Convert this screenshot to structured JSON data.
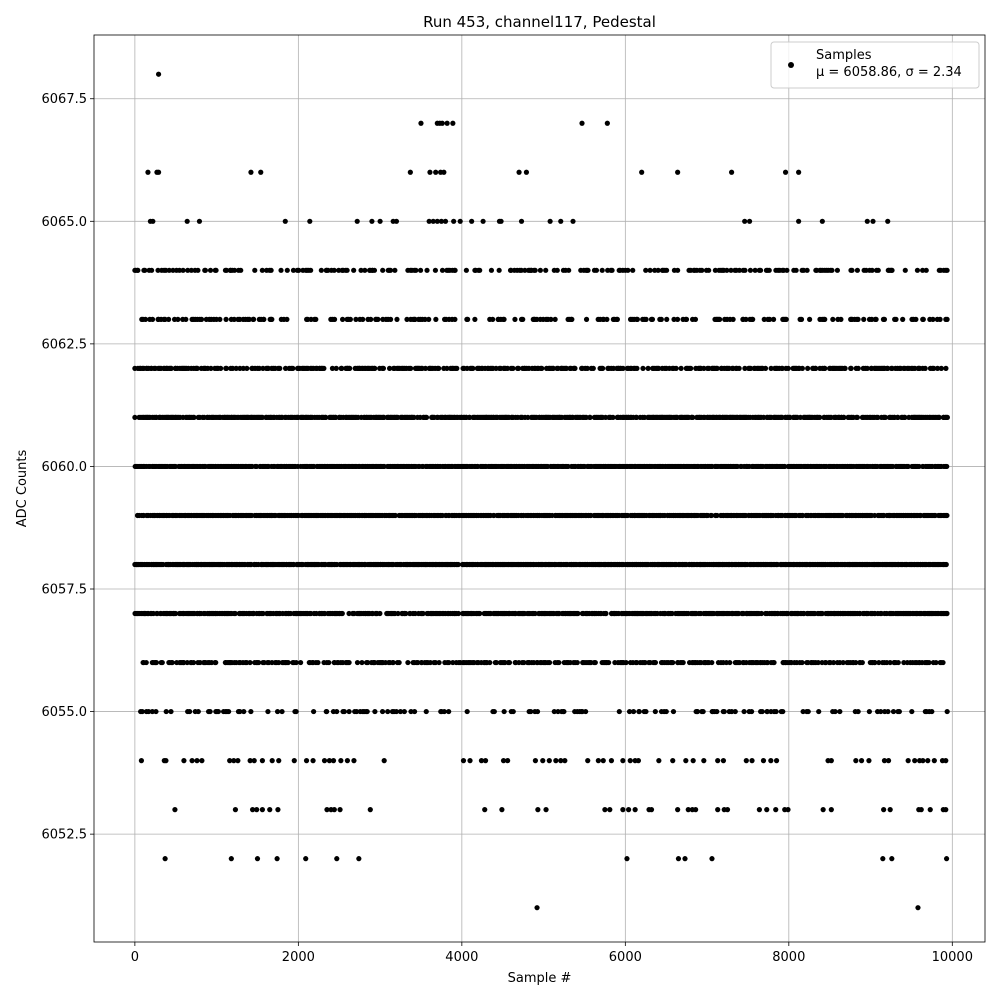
{
  "chart_data": {
    "type": "scatter",
    "title": "Run 453, channel117, Pedestal",
    "xlabel": "Sample #",
    "ylabel": "ADC Counts",
    "xlim": [
      -500,
      10400
    ],
    "ylim": [
      6050.3,
      6068.8
    ],
    "xticks": [
      0,
      2000,
      4000,
      6000,
      8000,
      10000
    ],
    "xtick_labels": [
      "0",
      "2000",
      "4000",
      "6000",
      "8000",
      "10000"
    ],
    "yticks": [
      6052.5,
      6055.0,
      6057.5,
      6060.0,
      6062.5,
      6065.0,
      6067.5
    ],
    "ytick_labels": [
      "6052.5",
      "6055.0",
      "6057.5",
      "6060.0",
      "6062.5",
      "6065.0",
      "6067.5"
    ],
    "grid": true,
    "legend_position": "top-right",
    "marker_color": "#000000",
    "series": [
      {
        "name": "Samples",
        "stats_label": "μ = 6058.86, σ = 2.34",
        "band_x_range": [
          0,
          9940
        ],
        "dense_levels": [
          6055,
          6056,
          6057,
          6058,
          6059,
          6060,
          6061,
          6062,
          6063,
          6064
        ],
        "level_densities": [
          0.2,
          0.5,
          0.75,
          0.92,
          0.92,
          0.92,
          0.78,
          0.55,
          0.3,
          0.3
        ],
        "sparse_points": [
          {
            "x": 290,
            "y": 6068
          },
          {
            "x": 3500,
            "y": 6067
          },
          {
            "x": 3700,
            "y": 6067
          },
          {
            "x": 3730,
            "y": 6067
          },
          {
            "x": 3760,
            "y": 6067
          },
          {
            "x": 3820,
            "y": 6067
          },
          {
            "x": 3890,
            "y": 6067
          },
          {
            "x": 5470,
            "y": 6067
          },
          {
            "x": 5780,
            "y": 6067
          },
          {
            "x": 160,
            "y": 6066
          },
          {
            "x": 270,
            "y": 6066
          },
          {
            "x": 290,
            "y": 6066
          },
          {
            "x": 1420,
            "y": 6066
          },
          {
            "x": 1540,
            "y": 6066
          },
          {
            "x": 3370,
            "y": 6066
          },
          {
            "x": 3610,
            "y": 6066
          },
          {
            "x": 3680,
            "y": 6066
          },
          {
            "x": 3740,
            "y": 6066
          },
          {
            "x": 3780,
            "y": 6066
          },
          {
            "x": 4700,
            "y": 6066
          },
          {
            "x": 4790,
            "y": 6066
          },
          {
            "x": 6200,
            "y": 6066
          },
          {
            "x": 6640,
            "y": 6066
          },
          {
            "x": 7300,
            "y": 6066
          },
          {
            "x": 7960,
            "y": 6066
          },
          {
            "x": 8120,
            "y": 6066
          },
          {
            "x": 190,
            "y": 6065
          },
          {
            "x": 220,
            "y": 6065
          },
          {
            "x": 640,
            "y": 6065
          },
          {
            "x": 790,
            "y": 6065
          },
          {
            "x": 1840,
            "y": 6065
          },
          {
            "x": 2140,
            "y": 6065
          },
          {
            "x": 2720,
            "y": 6065
          },
          {
            "x": 2900,
            "y": 6065
          },
          {
            "x": 3000,
            "y": 6065
          },
          {
            "x": 3160,
            "y": 6065
          },
          {
            "x": 3200,
            "y": 6065
          },
          {
            "x": 3600,
            "y": 6065
          },
          {
            "x": 3650,
            "y": 6065
          },
          {
            "x": 3700,
            "y": 6065
          },
          {
            "x": 3750,
            "y": 6065
          },
          {
            "x": 3800,
            "y": 6065
          },
          {
            "x": 3900,
            "y": 6065
          },
          {
            "x": 3980,
            "y": 6065
          },
          {
            "x": 4120,
            "y": 6065
          },
          {
            "x": 4260,
            "y": 6065
          },
          {
            "x": 4460,
            "y": 6065
          },
          {
            "x": 4480,
            "y": 6065
          },
          {
            "x": 4730,
            "y": 6065
          },
          {
            "x": 5080,
            "y": 6065
          },
          {
            "x": 5210,
            "y": 6065
          },
          {
            "x": 5360,
            "y": 6065
          },
          {
            "x": 7460,
            "y": 6065
          },
          {
            "x": 7520,
            "y": 6065
          },
          {
            "x": 8120,
            "y": 6065
          },
          {
            "x": 8410,
            "y": 6065
          },
          {
            "x": 8960,
            "y": 6065
          },
          {
            "x": 9030,
            "y": 6065
          },
          {
            "x": 9210,
            "y": 6065
          },
          {
            "x": 80,
            "y": 6054
          },
          {
            "x": 360,
            "y": 6054
          },
          {
            "x": 380,
            "y": 6054
          },
          {
            "x": 600,
            "y": 6054
          },
          {
            "x": 700,
            "y": 6054
          },
          {
            "x": 760,
            "y": 6054
          },
          {
            "x": 820,
            "y": 6054
          },
          {
            "x": 1160,
            "y": 6054
          },
          {
            "x": 1210,
            "y": 6054
          },
          {
            "x": 1260,
            "y": 6054
          },
          {
            "x": 1410,
            "y": 6054
          },
          {
            "x": 1460,
            "y": 6054
          },
          {
            "x": 1560,
            "y": 6054
          },
          {
            "x": 1680,
            "y": 6054
          },
          {
            "x": 1760,
            "y": 6054
          },
          {
            "x": 1950,
            "y": 6054
          },
          {
            "x": 2100,
            "y": 6054
          },
          {
            "x": 2180,
            "y": 6054
          },
          {
            "x": 2320,
            "y": 6054
          },
          {
            "x": 2380,
            "y": 6054
          },
          {
            "x": 2430,
            "y": 6054
          },
          {
            "x": 2520,
            "y": 6054
          },
          {
            "x": 2600,
            "y": 6054
          },
          {
            "x": 2680,
            "y": 6054
          },
          {
            "x": 3050,
            "y": 6054
          },
          {
            "x": 4020,
            "y": 6054
          },
          {
            "x": 4100,
            "y": 6054
          },
          {
            "x": 4240,
            "y": 6054
          },
          {
            "x": 4290,
            "y": 6054
          },
          {
            "x": 4510,
            "y": 6054
          },
          {
            "x": 4560,
            "y": 6054
          },
          {
            "x": 4900,
            "y": 6054
          },
          {
            "x": 4990,
            "y": 6054
          },
          {
            "x": 5070,
            "y": 6054
          },
          {
            "x": 5150,
            "y": 6054
          },
          {
            "x": 5210,
            "y": 6054
          },
          {
            "x": 5260,
            "y": 6054
          },
          {
            "x": 5540,
            "y": 6054
          },
          {
            "x": 5670,
            "y": 6054
          },
          {
            "x": 5730,
            "y": 6054
          },
          {
            "x": 5830,
            "y": 6054
          },
          {
            "x": 5970,
            "y": 6054
          },
          {
            "x": 6060,
            "y": 6054
          },
          {
            "x": 6120,
            "y": 6054
          },
          {
            "x": 6160,
            "y": 6054
          },
          {
            "x": 6410,
            "y": 6054
          },
          {
            "x": 6580,
            "y": 6054
          },
          {
            "x": 6740,
            "y": 6054
          },
          {
            "x": 6830,
            "y": 6054
          },
          {
            "x": 6960,
            "y": 6054
          },
          {
            "x": 7130,
            "y": 6054
          },
          {
            "x": 7200,
            "y": 6054
          },
          {
            "x": 7480,
            "y": 6054
          },
          {
            "x": 7550,
            "y": 6054
          },
          {
            "x": 7690,
            "y": 6054
          },
          {
            "x": 7780,
            "y": 6054
          },
          {
            "x": 7850,
            "y": 6054
          },
          {
            "x": 8480,
            "y": 6054
          },
          {
            "x": 8520,
            "y": 6054
          },
          {
            "x": 8820,
            "y": 6054
          },
          {
            "x": 8890,
            "y": 6054
          },
          {
            "x": 8980,
            "y": 6054
          },
          {
            "x": 9170,
            "y": 6054
          },
          {
            "x": 9220,
            "y": 6054
          },
          {
            "x": 9460,
            "y": 6054
          },
          {
            "x": 9540,
            "y": 6054
          },
          {
            "x": 9600,
            "y": 6054
          },
          {
            "x": 9640,
            "y": 6054
          },
          {
            "x": 9700,
            "y": 6054
          },
          {
            "x": 9780,
            "y": 6054
          },
          {
            "x": 9880,
            "y": 6054
          },
          {
            "x": 9920,
            "y": 6054
          },
          {
            "x": 490,
            "y": 6053
          },
          {
            "x": 1230,
            "y": 6053
          },
          {
            "x": 1440,
            "y": 6053
          },
          {
            "x": 1490,
            "y": 6053
          },
          {
            "x": 1560,
            "y": 6053
          },
          {
            "x": 1650,
            "y": 6053
          },
          {
            "x": 1750,
            "y": 6053
          },
          {
            "x": 2350,
            "y": 6053
          },
          {
            "x": 2400,
            "y": 6053
          },
          {
            "x": 2440,
            "y": 6053
          },
          {
            "x": 2510,
            "y": 6053
          },
          {
            "x": 2880,
            "y": 6053
          },
          {
            "x": 4280,
            "y": 6053
          },
          {
            "x": 4490,
            "y": 6053
          },
          {
            "x": 4930,
            "y": 6053
          },
          {
            "x": 5030,
            "y": 6053
          },
          {
            "x": 5750,
            "y": 6053
          },
          {
            "x": 5810,
            "y": 6053
          },
          {
            "x": 5970,
            "y": 6053
          },
          {
            "x": 6040,
            "y": 6053
          },
          {
            "x": 6120,
            "y": 6053
          },
          {
            "x": 6290,
            "y": 6053
          },
          {
            "x": 6320,
            "y": 6053
          },
          {
            "x": 6640,
            "y": 6053
          },
          {
            "x": 6770,
            "y": 6053
          },
          {
            "x": 6820,
            "y": 6053
          },
          {
            "x": 6860,
            "y": 6053
          },
          {
            "x": 7130,
            "y": 6053
          },
          {
            "x": 7210,
            "y": 6053
          },
          {
            "x": 7250,
            "y": 6053
          },
          {
            "x": 7640,
            "y": 6053
          },
          {
            "x": 7730,
            "y": 6053
          },
          {
            "x": 7840,
            "y": 6053
          },
          {
            "x": 7950,
            "y": 6053
          },
          {
            "x": 7990,
            "y": 6053
          },
          {
            "x": 8420,
            "y": 6053
          },
          {
            "x": 8520,
            "y": 6053
          },
          {
            "x": 9160,
            "y": 6053
          },
          {
            "x": 9240,
            "y": 6053
          },
          {
            "x": 9590,
            "y": 6053
          },
          {
            "x": 9620,
            "y": 6053
          },
          {
            "x": 9730,
            "y": 6053
          },
          {
            "x": 9890,
            "y": 6053
          },
          {
            "x": 9920,
            "y": 6053
          },
          {
            "x": 370,
            "y": 6052
          },
          {
            "x": 1180,
            "y": 6052
          },
          {
            "x": 1500,
            "y": 6052
          },
          {
            "x": 1740,
            "y": 6052
          },
          {
            "x": 2090,
            "y": 6052
          },
          {
            "x": 2470,
            "y": 6052
          },
          {
            "x": 2740,
            "y": 6052
          },
          {
            "x": 6020,
            "y": 6052
          },
          {
            "x": 6650,
            "y": 6052
          },
          {
            "x": 6730,
            "y": 6052
          },
          {
            "x": 7060,
            "y": 6052
          },
          {
            "x": 9150,
            "y": 6052
          },
          {
            "x": 9260,
            "y": 6052
          },
          {
            "x": 9930,
            "y": 6052
          },
          {
            "x": 4920,
            "y": 6051
          },
          {
            "x": 9580,
            "y": 6051
          }
        ]
      }
    ]
  }
}
